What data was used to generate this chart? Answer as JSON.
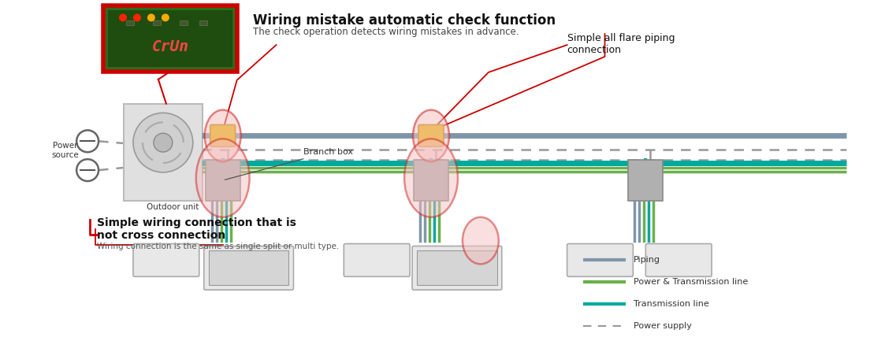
{
  "bg_color": "#ffffff",
  "fig_width": 11.04,
  "fig_height": 4.61,
  "colors": {
    "piping": "#7f96aa",
    "power_trans": "#6ab04c",
    "transmission": "#00a99d",
    "power_supply": "#999999",
    "red_line": "#cc0000",
    "yellow": "#e8b800",
    "gray_box": "#aaaaaa",
    "red_circle_edge": "#cc2222",
    "pink_fill": "#f5c0c0",
    "pcb_green": "#2d6b1a",
    "pcb_red_border": "#cc0000",
    "outdoor_gray": "#d8d8d8",
    "wire_blue": "#7f96aa",
    "wire_green": "#6ab04c",
    "wire_teal": "#00a99d"
  },
  "texts": {
    "pcb_label": "CrUn",
    "title": "Wiring mistake automatic check function",
    "subtitle": "The check operation detects wiring mistakes in advance.",
    "power_source": "Power\nsource",
    "outdoor_unit": "Outdoor unit",
    "branch_box": "Branch box",
    "top_right": "Simple all flare piping\nconnection",
    "bottom_left_title": "Simple wiring connection that is\nnot cross connection",
    "bottom_left_sub": "Wiring connection is the same as single split or multi type."
  },
  "legend": [
    {
      "label": "Piping",
      "color": "#7f96aa",
      "style": "solid",
      "lw": 3
    },
    {
      "label": "Power & Transmission line",
      "color": "#6ab04c",
      "style": "solid",
      "lw": 3
    },
    {
      "label": "Transmission line",
      "color": "#00a99d",
      "style": "solid",
      "lw": 3
    },
    {
      "label": "Power supply",
      "color": "#999999",
      "style": "dashed",
      "lw": 1.5
    }
  ]
}
